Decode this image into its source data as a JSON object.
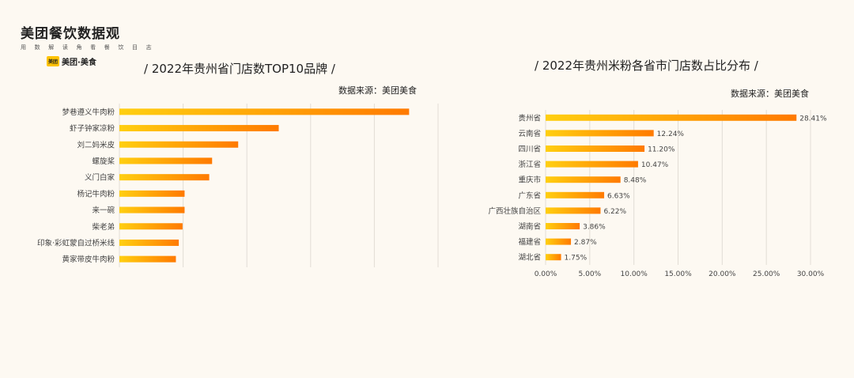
{
  "logo": {
    "title": "美团餐饮数据观",
    "subtitle": "用 数 解 读 角 看 餐 饮 目 志",
    "badge": "美团",
    "brand": "美团·美食"
  },
  "colors": {
    "background": "#fdf9f2",
    "bar_light": "#ffcf10",
    "bar_dark": "#ff7a00",
    "grid": "#e2ddd5"
  },
  "chart_data": [
    {
      "type": "bar",
      "orientation": "horizontal",
      "title": "/  2022年贵州省门店数TOP10品牌  /",
      "source": "数据来源：美团美食",
      "categories": [
        "梦巷遵义牛肉粉",
        "虾子钟家凉粉",
        "刘二妈米皮",
        "螺旋桨",
        "义门白家",
        "杨记牛肉粉",
        "来一碗",
        "柴老弟",
        "印象·彩虹蒙自过桥米线",
        "黄家带皮牛肉粉"
      ],
      "values": [
        100,
        55,
        41,
        32,
        31,
        22.5,
        22.5,
        21.8,
        20.5,
        19.5
      ],
      "xlim": [
        0,
        110
      ],
      "grid": true,
      "axis_labels_visible": false
    },
    {
      "type": "bar",
      "orientation": "horizontal",
      "title": "/ 2022年贵州米粉各省市门店数占比分布  /",
      "source": "数据来源：美团美食",
      "categories": [
        "贵州省",
        "云南省",
        "四川省",
        "浙江省",
        "重庆市",
        "广东省",
        "广西壮族自治区",
        "湖南省",
        "福建省",
        "湖北省"
      ],
      "values": [
        28.41,
        12.24,
        11.2,
        10.47,
        8.48,
        6.63,
        6.22,
        3.86,
        2.87,
        1.75
      ],
      "data_labels": [
        "28.41%",
        "12.24%",
        "11.20%",
        "10.47%",
        "8.48%",
        "6.63%",
        "6.22%",
        "3.86%",
        "2.87%",
        "1.75%"
      ],
      "xlim": [
        0,
        30
      ],
      "xticks": [
        0,
        5,
        10,
        15,
        20,
        25,
        30
      ],
      "xtick_labels": [
        "0.00%",
        "5.00%",
        "10.00%",
        "15.00%",
        "20.00%",
        "25.00%",
        "30.00%"
      ],
      "grid": true
    }
  ]
}
